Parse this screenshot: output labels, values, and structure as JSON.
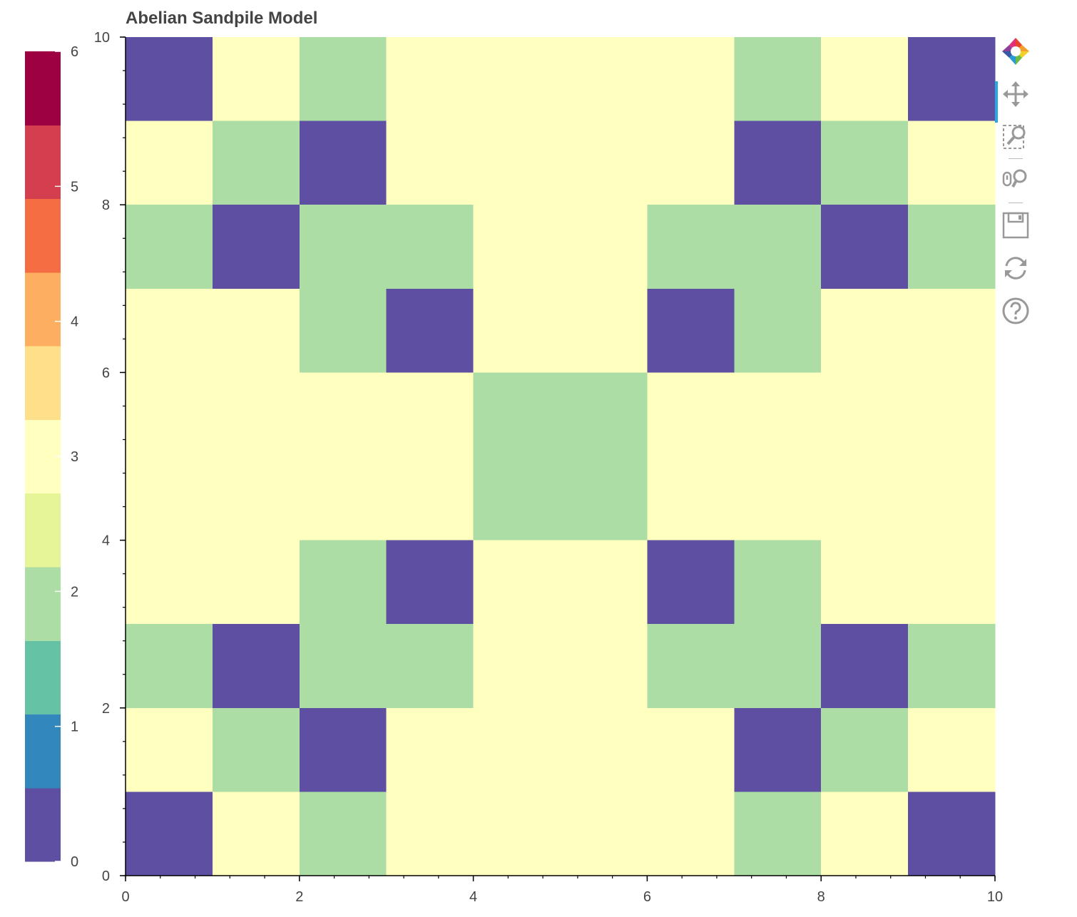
{
  "chart_data": {
    "type": "heatmap",
    "title": "Abelian Sandpile Model",
    "xlim": [
      0,
      10
    ],
    "ylim": [
      0,
      10
    ],
    "x_ticks": [
      0,
      2,
      4,
      6,
      8,
      10
    ],
    "y_ticks": [
      0,
      2,
      4,
      6,
      8,
      10
    ],
    "grid_rows_top_to_bottom": [
      [
        0,
        3,
        2,
        3,
        3,
        3,
        3,
        2,
        3,
        0
      ],
      [
        3,
        2,
        0,
        3,
        3,
        3,
        3,
        0,
        2,
        3
      ],
      [
        2,
        0,
        2,
        2,
        3,
        3,
        2,
        2,
        0,
        2
      ],
      [
        3,
        3,
        2,
        0,
        3,
        3,
        0,
        2,
        3,
        3
      ],
      [
        3,
        3,
        3,
        3,
        2,
        2,
        3,
        3,
        3,
        3
      ],
      [
        3,
        3,
        3,
        3,
        2,
        2,
        3,
        3,
        3,
        3
      ],
      [
        3,
        3,
        2,
        0,
        3,
        3,
        0,
        2,
        3,
        3
      ],
      [
        2,
        0,
        2,
        2,
        3,
        3,
        2,
        2,
        0,
        2
      ],
      [
        3,
        2,
        0,
        3,
        3,
        3,
        3,
        0,
        2,
        3
      ],
      [
        0,
        3,
        2,
        3,
        3,
        3,
        3,
        2,
        3,
        0
      ]
    ],
    "colorbar": {
      "low": 0,
      "high": 6,
      "ticks": [
        0,
        1,
        2,
        3,
        4,
        5,
        6
      ],
      "palette": [
        "#5e4fa2",
        "#3288bd",
        "#66c2a5",
        "#abdda4",
        "#e6f598",
        "#ffffbf",
        "#fee08b",
        "#fdae61",
        "#f46d43",
        "#d53e4f",
        "#9e0142"
      ]
    },
    "grid": false
  },
  "toolbar": {
    "tools": [
      {
        "id": "bokeh-logo",
        "icon": "bokeh-logo-icon"
      },
      {
        "id": "pan",
        "icon": "pan-icon",
        "active": true
      },
      {
        "id": "box-zoom",
        "icon": "box-zoom-icon"
      },
      {
        "id": "wheel-zoom",
        "icon": "wheel-zoom-icon"
      },
      {
        "id": "save",
        "icon": "save-icon"
      },
      {
        "id": "reset",
        "icon": "reset-icon"
      },
      {
        "id": "help",
        "icon": "help-icon"
      }
    ]
  }
}
